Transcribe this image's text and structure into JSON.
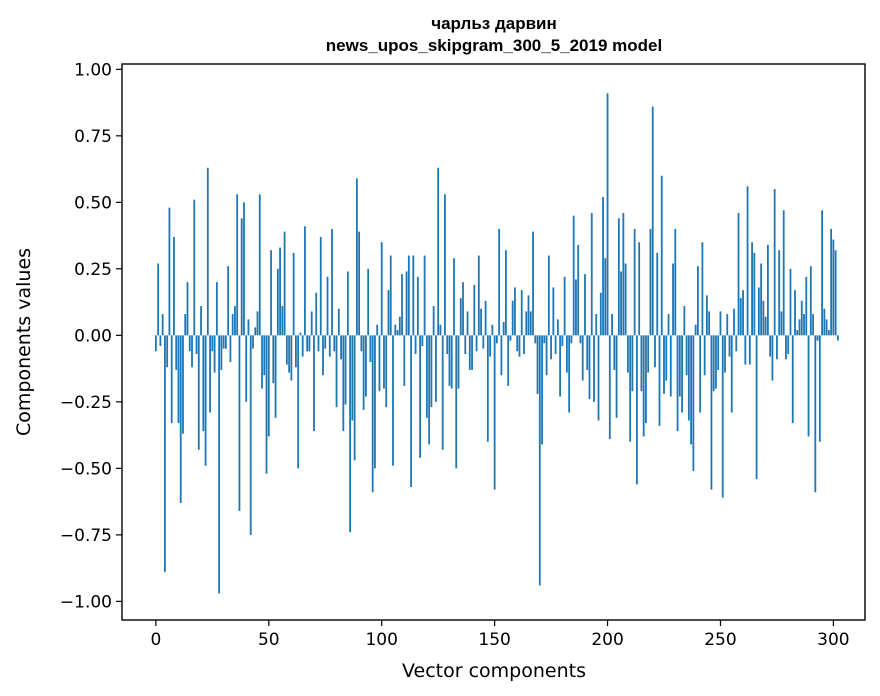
{
  "chart_data": {
    "type": "bar",
    "title": "чарльз дарвин",
    "subtitle": "news_upos_skipgram_300_5_2019 model",
    "xlabel": "Vector components",
    "ylabel": "Components values",
    "xlim": [
      -15,
      314
    ],
    "ylim": [
      -1.07,
      1.02
    ],
    "xticks": [
      0,
      50,
      100,
      150,
      200,
      250,
      300
    ],
    "yticks": [
      -1.0,
      -0.75,
      -0.5,
      -0.25,
      0.0,
      0.25,
      0.5,
      0.75,
      1.0
    ],
    "xtick_labels": [
      "0",
      "50",
      "100",
      "150",
      "200",
      "250",
      "300"
    ],
    "ytick_labels": [
      "−1.00",
      "−0.75",
      "−0.50",
      "−0.25",
      "0.00",
      "0.25",
      "0.50",
      "0.75",
      "1.00"
    ],
    "grid": false,
    "bar_color": "#1f77b4",
    "values": [
      -0.06,
      0.27,
      -0.04,
      0.08,
      -0.89,
      -0.12,
      0.48,
      -0.33,
      0.37,
      -0.13,
      -0.33,
      -0.63,
      -0.37,
      0.08,
      0.2,
      -0.06,
      -0.12,
      0.51,
      -0.07,
      -0.43,
      0.11,
      -0.36,
      -0.49,
      0.63,
      -0.29,
      -0.06,
      -0.14,
      0.2,
      -0.97,
      -0.13,
      -0.05,
      -0.05,
      0.26,
      -0.1,
      0.08,
      0.11,
      0.53,
      -0.66,
      0.44,
      0.5,
      -0.25,
      0.06,
      -0.75,
      -0.05,
      0.03,
      0.09,
      0.53,
      -0.2,
      -0.15,
      -0.52,
      -0.38,
      0.32,
      -0.18,
      -0.31,
      0.25,
      0.33,
      0.11,
      0.39,
      -0.11,
      -0.14,
      -0.17,
      0.31,
      -0.12,
      -0.5,
      0.01,
      -0.08,
      0.41,
      -0.06,
      -0.06,
      0.09,
      -0.36,
      0.16,
      -0.06,
      0.37,
      -0.15,
      -0.05,
      0.22,
      -0.08,
      0.4,
      -0.06,
      -0.27,
      0.1,
      -0.09,
      -0.36,
      -0.26,
      0.24,
      -0.74,
      -0.32,
      -0.47,
      0.59,
      0.39,
      -0.06,
      -0.28,
      -0.23,
      0.25,
      -0.1,
      -0.59,
      -0.5,
      0.04,
      -0.21,
      0.35,
      -0.2,
      -0.27,
      0.17,
      0.3,
      -0.49,
      0.04,
      0.02,
      0.07,
      0.23,
      -0.19,
      0.24,
      0.3,
      -0.57,
      0.3,
      -0.07,
      0.22,
      -0.46,
      -0.04,
      0.3,
      -0.31,
      -0.41,
      -0.27,
      0.11,
      -0.25,
      0.63,
      0.04,
      -0.43,
      0.53,
      -0.07,
      -0.19,
      -0.2,
      0.29,
      -0.5,
      -0.2,
      0.14,
      0.2,
      -0.07,
      0.09,
      -0.13,
      -0.13,
      0.19,
      -0.06,
      0.3,
      0.1,
      -0.05,
      0.13,
      -0.4,
      -0.08,
      0.04,
      -0.58,
      -0.03,
      0.4,
      -0.15,
      0.05,
      0.32,
      -0.19,
      -0.02,
      0.13,
      0.18,
      -0.06,
      -0.08,
      0.17,
      -0.07,
      0.09,
      0.15,
      0.09,
      0.39,
      -0.03,
      -0.22,
      -0.94,
      -0.41,
      -0.03,
      -0.15,
      0.3,
      -0.09,
      0.18,
      -0.07,
      0.06,
      -0.23,
      -0.04,
      0.22,
      -0.14,
      -0.29,
      -0.03,
      0.45,
      0.21,
      0.34,
      -0.03,
      -0.17,
      0.23,
      -0.13,
      -0.24,
      0.46,
      -0.25,
      0.08,
      -0.32,
      0.16,
      0.52,
      0.29,
      0.91,
      -0.39,
      0.08,
      -0.13,
      -0.31,
      0.44,
      0.24,
      0.46,
      0.27,
      -0.14,
      -0.4,
      -0.21,
      0.4,
      -0.56,
      0.35,
      -0.21,
      -0.38,
      -0.33,
      -0.14,
      0.4,
      0.86,
      -0.12,
      0.31,
      -0.34,
      0.6,
      -0.22,
      -0.17,
      0.08,
      -0.23,
      0.27,
      0.4,
      -0.36,
      -0.23,
      -0.29,
      0.11,
      -0.15,
      -0.32,
      -0.41,
      -0.51,
      0.04,
      0.26,
      -0.29,
      0.35,
      -0.15,
      0.15,
      0.09,
      -0.58,
      -0.21,
      -0.2,
      -0.13,
      0.09,
      -0.61,
      -0.14,
      0.08,
      -0.08,
      -0.29,
      0.1,
      -0.06,
      0.46,
      0.14,
      0.17,
      -0.11,
      0.56,
      -0.11,
      0.35,
      0.31,
      -0.54,
      0.18,
      0.27,
      0.13,
      0.07,
      0.34,
      -0.08,
      -0.17,
      0.55,
      -0.09,
      0.32,
      0.09,
      0.47,
      -0.09,
      -0.07,
      0.25,
      -0.33,
      0.17,
      0.02,
      0.06,
      0.13,
      0.08,
      0.22,
      -0.38,
      0.26,
      0.08,
      -0.59,
      -0.02,
      -0.4,
      0.47,
      0.1,
      0.06,
      0.02,
      0.4,
      0.36,
      0.32,
      -0.02
    ]
  }
}
